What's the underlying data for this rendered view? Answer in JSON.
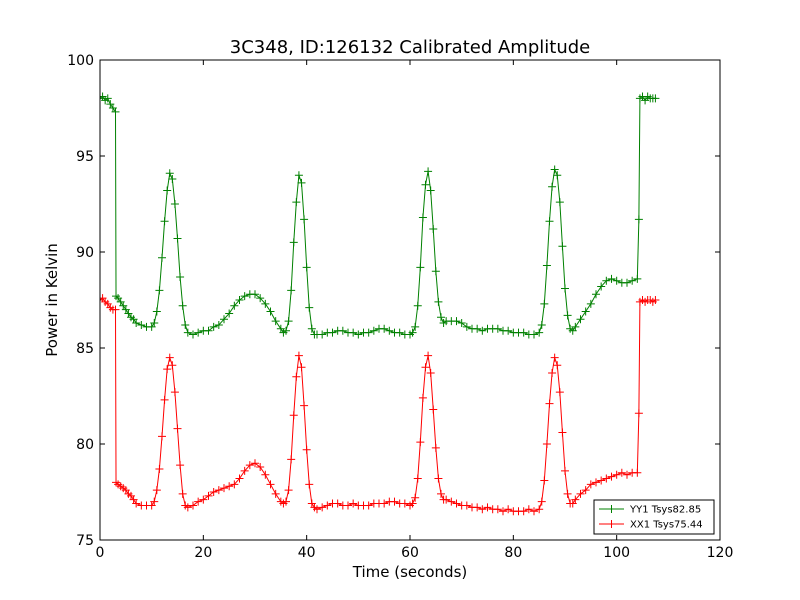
{
  "chart_data": {
    "type": "line",
    "title": "3C348, ID:126132 Calibrated Amplitude",
    "xlabel": "Time (seconds)",
    "ylabel": "Power in Kelvin",
    "xlim": [
      0,
      120
    ],
    "ylim": [
      75,
      100
    ],
    "xticks": [
      0,
      20,
      40,
      60,
      80,
      100,
      120
    ],
    "yticks": [
      75,
      80,
      85,
      90,
      95,
      100
    ],
    "grid": false,
    "legend_position": "lower-right",
    "colors": {
      "YY1": "#008000",
      "XX1": "#ff0000"
    },
    "series": [
      {
        "name": "YY1 Tsys82.85",
        "color": "#008000",
        "marker": "+",
        "points": [
          [
            0.0,
            98.0
          ],
          [
            0.5,
            98.1
          ],
          [
            1.0,
            97.9
          ],
          [
            1.5,
            98.0
          ],
          [
            2.0,
            97.7
          ],
          [
            2.5,
            97.5
          ],
          [
            3.0,
            97.3
          ],
          [
            3.1,
            87.7
          ],
          [
            3.5,
            87.6
          ],
          [
            4.0,
            87.4
          ],
          [
            4.5,
            87.2
          ],
          [
            5.0,
            87.0
          ],
          [
            5.5,
            86.8
          ],
          [
            6.0,
            86.6
          ],
          [
            6.5,
            86.5
          ],
          [
            7.0,
            86.3
          ],
          [
            8.0,
            86.2
          ],
          [
            9.0,
            86.1
          ],
          [
            10.0,
            86.1
          ],
          [
            10.5,
            86.3
          ],
          [
            11.0,
            86.9
          ],
          [
            11.5,
            88.0
          ],
          [
            12.0,
            89.7
          ],
          [
            12.5,
            91.6
          ],
          [
            13.0,
            93.2
          ],
          [
            13.5,
            94.1
          ],
          [
            14.0,
            93.8
          ],
          [
            14.5,
            92.5
          ],
          [
            15.0,
            90.7
          ],
          [
            15.5,
            88.7
          ],
          [
            16.0,
            87.2
          ],
          [
            16.5,
            86.2
          ],
          [
            17.0,
            85.8
          ],
          [
            18.0,
            85.7
          ],
          [
            19.0,
            85.8
          ],
          [
            20.0,
            85.9
          ],
          [
            21.0,
            85.9
          ],
          [
            22.0,
            86.1
          ],
          [
            23.0,
            86.2
          ],
          [
            24.0,
            86.5
          ],
          [
            25.0,
            86.8
          ],
          [
            26.0,
            87.2
          ],
          [
            27.0,
            87.5
          ],
          [
            28.0,
            87.7
          ],
          [
            29.0,
            87.8
          ],
          [
            30.0,
            87.8
          ],
          [
            31.0,
            87.6
          ],
          [
            32.0,
            87.3
          ],
          [
            33.0,
            86.9
          ],
          [
            34.0,
            86.4
          ],
          [
            35.0,
            86.0
          ],
          [
            35.5,
            85.8
          ],
          [
            36.0,
            85.9
          ],
          [
            36.5,
            86.4
          ],
          [
            37.0,
            88.0
          ],
          [
            37.5,
            90.5
          ],
          [
            38.0,
            92.6
          ],
          [
            38.5,
            94.0
          ],
          [
            39.0,
            93.6
          ],
          [
            39.5,
            91.7
          ],
          [
            40.0,
            89.2
          ],
          [
            40.5,
            87.1
          ],
          [
            41.0,
            86.0
          ],
          [
            41.5,
            85.7
          ],
          [
            42.0,
            85.7
          ],
          [
            43.0,
            85.7
          ],
          [
            44.0,
            85.8
          ],
          [
            45.0,
            85.8
          ],
          [
            46.0,
            85.9
          ],
          [
            47.0,
            85.9
          ],
          [
            48.0,
            85.8
          ],
          [
            49.0,
            85.8
          ],
          [
            50.0,
            85.7
          ],
          [
            51.0,
            85.8
          ],
          [
            52.0,
            85.8
          ],
          [
            53.0,
            85.9
          ],
          [
            54.0,
            86.0
          ],
          [
            55.0,
            86.0
          ],
          [
            56.0,
            85.9
          ],
          [
            57.0,
            85.8
          ],
          [
            58.0,
            85.8
          ],
          [
            59.0,
            85.7
          ],
          [
            60.0,
            85.7
          ],
          [
            60.5,
            85.8
          ],
          [
            61.0,
            86.1
          ],
          [
            61.5,
            87.2
          ],
          [
            62.0,
            89.2
          ],
          [
            62.5,
            91.8
          ],
          [
            63.0,
            93.5
          ],
          [
            63.5,
            94.2
          ],
          [
            64.0,
            93.2
          ],
          [
            64.5,
            91.2
          ],
          [
            65.0,
            89.0
          ],
          [
            65.5,
            87.4
          ],
          [
            66.0,
            86.6
          ],
          [
            66.5,
            86.3
          ],
          [
            67.0,
            86.4
          ],
          [
            68.0,
            86.4
          ],
          [
            69.0,
            86.4
          ],
          [
            70.0,
            86.3
          ],
          [
            71.0,
            86.1
          ],
          [
            72.0,
            86.0
          ],
          [
            73.0,
            86.0
          ],
          [
            74.0,
            85.9
          ],
          [
            75.0,
            86.0
          ],
          [
            76.0,
            86.0
          ],
          [
            77.0,
            86.0
          ],
          [
            78.0,
            85.9
          ],
          [
            79.0,
            85.9
          ],
          [
            80.0,
            85.8
          ],
          [
            81.0,
            85.8
          ],
          [
            82.0,
            85.8
          ],
          [
            83.0,
            85.7
          ],
          [
            84.0,
            85.7
          ],
          [
            85.0,
            85.8
          ],
          [
            85.5,
            86.2
          ],
          [
            86.0,
            87.3
          ],
          [
            86.5,
            89.3
          ],
          [
            87.0,
            91.6
          ],
          [
            87.5,
            93.4
          ],
          [
            88.0,
            94.3
          ],
          [
            88.5,
            94.0
          ],
          [
            89.0,
            92.6
          ],
          [
            89.5,
            90.3
          ],
          [
            90.0,
            88.1
          ],
          [
            90.5,
            86.7
          ],
          [
            91.0,
            86.0
          ],
          [
            91.5,
            85.9
          ],
          [
            92.0,
            86.1
          ],
          [
            93.0,
            86.5
          ],
          [
            94.0,
            86.9
          ],
          [
            95.0,
            87.3
          ],
          [
            96.0,
            87.8
          ],
          [
            97.0,
            88.2
          ],
          [
            98.0,
            88.5
          ],
          [
            99.0,
            88.6
          ],
          [
            100.0,
            88.5
          ],
          [
            101.0,
            88.4
          ],
          [
            102.0,
            88.4
          ],
          [
            103.0,
            88.5
          ],
          [
            104.0,
            88.6
          ],
          [
            104.3,
            91.7
          ],
          [
            104.5,
            98.0
          ],
          [
            105.0,
            98.1
          ],
          [
            105.5,
            97.9
          ],
          [
            106.0,
            98.1
          ],
          [
            106.5,
            98.0
          ],
          [
            107.0,
            98.0
          ],
          [
            107.5,
            98.0
          ]
        ]
      },
      {
        "name": "XX1 Tsys75.44",
        "color": "#ff0000",
        "marker": "+",
        "points": [
          [
            0.0,
            87.5
          ],
          [
            0.5,
            87.6
          ],
          [
            1.0,
            87.4
          ],
          [
            1.5,
            87.3
          ],
          [
            2.0,
            87.1
          ],
          [
            2.5,
            87.0
          ],
          [
            3.0,
            87.0
          ],
          [
            3.1,
            78.0
          ],
          [
            3.5,
            77.9
          ],
          [
            4.0,
            77.8
          ],
          [
            4.5,
            77.7
          ],
          [
            5.0,
            77.6
          ],
          [
            5.5,
            77.4
          ],
          [
            6.0,
            77.3
          ],
          [
            6.5,
            77.1
          ],
          [
            7.0,
            76.9
          ],
          [
            8.0,
            76.8
          ],
          [
            9.0,
            76.8
          ],
          [
            10.0,
            76.8
          ],
          [
            10.5,
            77.0
          ],
          [
            11.0,
            77.6
          ],
          [
            11.5,
            78.7
          ],
          [
            12.0,
            80.4
          ],
          [
            12.5,
            82.3
          ],
          [
            13.0,
            83.9
          ],
          [
            13.5,
            84.5
          ],
          [
            14.0,
            84.1
          ],
          [
            14.5,
            82.7
          ],
          [
            15.0,
            80.8
          ],
          [
            15.5,
            78.9
          ],
          [
            16.0,
            77.4
          ],
          [
            16.5,
            76.8
          ],
          [
            17.0,
            76.7
          ],
          [
            18.0,
            76.8
          ],
          [
            19.0,
            77.0
          ],
          [
            20.0,
            77.1
          ],
          [
            21.0,
            77.3
          ],
          [
            22.0,
            77.5
          ],
          [
            23.0,
            77.6
          ],
          [
            24.0,
            77.7
          ],
          [
            25.0,
            77.8
          ],
          [
            26.0,
            77.9
          ],
          [
            27.0,
            78.2
          ],
          [
            28.0,
            78.6
          ],
          [
            29.0,
            78.9
          ],
          [
            30.0,
            79.0
          ],
          [
            31.0,
            78.8
          ],
          [
            32.0,
            78.4
          ],
          [
            33.0,
            77.9
          ],
          [
            34.0,
            77.4
          ],
          [
            35.0,
            77.0
          ],
          [
            35.5,
            76.9
          ],
          [
            36.0,
            77.0
          ],
          [
            36.5,
            77.6
          ],
          [
            37.0,
            79.2
          ],
          [
            37.5,
            81.5
          ],
          [
            38.0,
            83.5
          ],
          [
            38.5,
            84.6
          ],
          [
            39.0,
            84.0
          ],
          [
            39.5,
            82.0
          ],
          [
            40.0,
            79.7
          ],
          [
            40.5,
            77.9
          ],
          [
            41.0,
            76.9
          ],
          [
            41.5,
            76.7
          ],
          [
            42.0,
            76.6
          ],
          [
            43.0,
            76.7
          ],
          [
            44.0,
            76.8
          ],
          [
            45.0,
            76.9
          ],
          [
            46.0,
            76.9
          ],
          [
            47.0,
            76.8
          ],
          [
            48.0,
            76.8
          ],
          [
            49.0,
            76.9
          ],
          [
            50.0,
            76.8
          ],
          [
            51.0,
            76.8
          ],
          [
            52.0,
            76.8
          ],
          [
            53.0,
            76.9
          ],
          [
            54.0,
            76.9
          ],
          [
            55.0,
            76.9
          ],
          [
            56.0,
            77.0
          ],
          [
            57.0,
            77.0
          ],
          [
            58.0,
            76.9
          ],
          [
            59.0,
            76.9
          ],
          [
            60.0,
            76.8
          ],
          [
            60.5,
            76.9
          ],
          [
            61.0,
            77.2
          ],
          [
            61.5,
            78.2
          ],
          [
            62.0,
            80.1
          ],
          [
            62.5,
            82.4
          ],
          [
            63.0,
            84.0
          ],
          [
            63.5,
            84.6
          ],
          [
            64.0,
            83.7
          ],
          [
            64.5,
            81.8
          ],
          [
            65.0,
            79.8
          ],
          [
            65.5,
            78.2
          ],
          [
            66.0,
            77.4
          ],
          [
            66.5,
            77.1
          ],
          [
            67.0,
            77.1
          ],
          [
            68.0,
            77.0
          ],
          [
            69.0,
            76.9
          ],
          [
            70.0,
            76.8
          ],
          [
            71.0,
            76.8
          ],
          [
            72.0,
            76.7
          ],
          [
            73.0,
            76.7
          ],
          [
            74.0,
            76.6
          ],
          [
            75.0,
            76.7
          ],
          [
            76.0,
            76.6
          ],
          [
            77.0,
            76.6
          ],
          [
            78.0,
            76.5
          ],
          [
            79.0,
            76.6
          ],
          [
            80.0,
            76.5
          ],
          [
            81.0,
            76.5
          ],
          [
            82.0,
            76.5
          ],
          [
            83.0,
            76.6
          ],
          [
            84.0,
            76.5
          ],
          [
            85.0,
            76.6
          ],
          [
            85.5,
            77.0
          ],
          [
            86.0,
            78.1
          ],
          [
            86.5,
            80.0
          ],
          [
            87.0,
            82.1
          ],
          [
            87.5,
            83.7
          ],
          [
            88.0,
            84.5
          ],
          [
            88.5,
            84.1
          ],
          [
            89.0,
            82.7
          ],
          [
            89.5,
            80.6
          ],
          [
            90.0,
            78.6
          ],
          [
            90.5,
            77.4
          ],
          [
            91.0,
            76.9
          ],
          [
            91.5,
            76.9
          ],
          [
            92.0,
            77.1
          ],
          [
            93.0,
            77.4
          ],
          [
            94.0,
            77.6
          ],
          [
            95.0,
            77.9
          ],
          [
            96.0,
            78.0
          ],
          [
            97.0,
            78.1
          ],
          [
            98.0,
            78.2
          ],
          [
            99.0,
            78.3
          ],
          [
            100.0,
            78.4
          ],
          [
            101.0,
            78.5
          ],
          [
            102.0,
            78.4
          ],
          [
            103.0,
            78.5
          ],
          [
            104.0,
            78.5
          ],
          [
            104.3,
            81.6
          ],
          [
            104.5,
            87.4
          ],
          [
            105.0,
            87.5
          ],
          [
            105.5,
            87.4
          ],
          [
            106.0,
            87.5
          ],
          [
            106.5,
            87.5
          ],
          [
            107.0,
            87.4
          ],
          [
            107.5,
            87.5
          ]
        ]
      }
    ]
  }
}
